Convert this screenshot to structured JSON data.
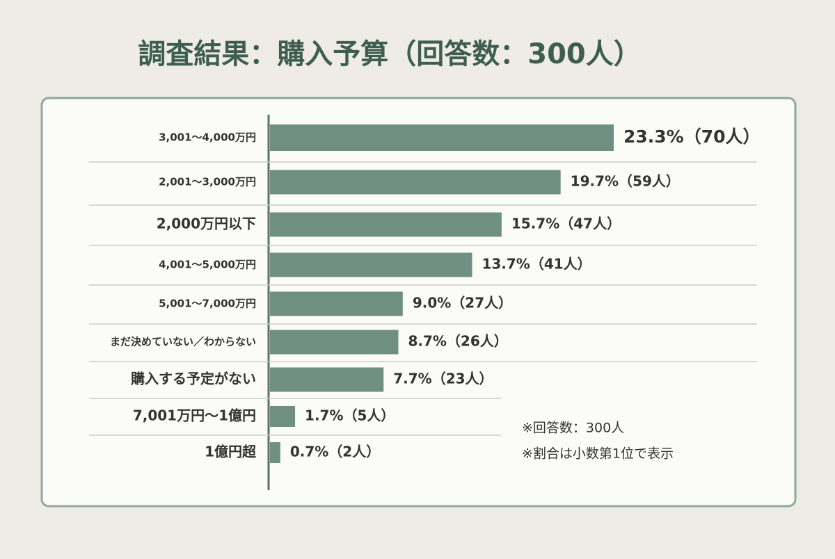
{
  "chart_data": {
    "type": "bar",
    "orientation": "horizontal",
    "title": "調査結果：購入予算（回答数：300人）",
    "categories": [
      "3,001〜4,000万円",
      "2,001〜3,000万円",
      "2,000万円以下",
      "4,001〜5,000万円",
      "5,001〜7,000万円",
      "まだ決めていない／わからない",
      "購入する予定がない",
      "7,001万円〜1億円",
      "1億円超"
    ],
    "values": [
      23.3,
      19.7,
      15.7,
      13.7,
      9.0,
      8.7,
      7.7,
      1.7,
      0.7
    ],
    "value_labels": [
      "23.3%（70人）",
      "19.7%（59人）",
      "15.7%（47人）",
      "13.7%（41人）",
      "9.0%（27人）",
      "8.7%（26人）",
      "7.7%（23人）",
      "1.7%（5人）",
      "0.7%（2人）"
    ],
    "color": "#6f8f82",
    "notes": [
      "※回答数：300人",
      "※割合は小数第1位で表示"
    ]
  }
}
